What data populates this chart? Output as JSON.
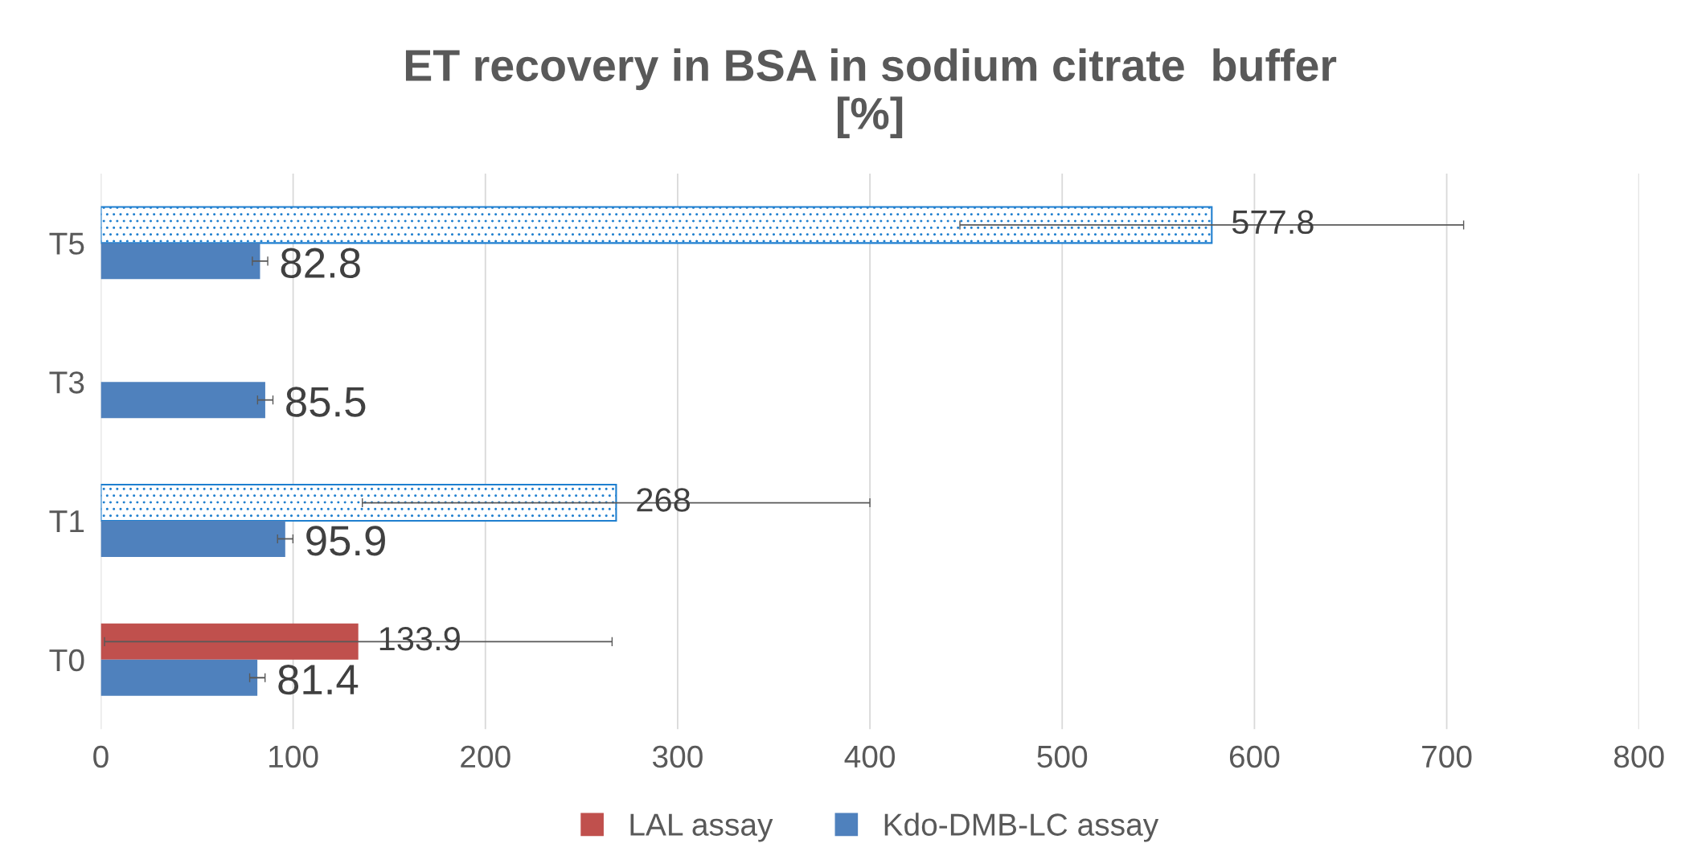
{
  "chart_data": {
    "type": "bar",
    "orientation": "horizontal",
    "title": "ET recovery in BSA in sodium citrate  buffer\n[%]",
    "categories": [
      "T5",
      "T3",
      "T1",
      "T0"
    ],
    "series": [
      {
        "name": "LAL assay",
        "color": "#c0504d",
        "colors": [
          "#1f7fcf",
          null,
          "#1f7fcf",
          "#c0504d"
        ],
        "values": [
          577.8,
          null,
          268,
          133.9
        ],
        "errors": [
          131,
          null,
          132,
          132
        ]
      },
      {
        "name": "Kdo-DMB-LC assay",
        "color": "#4f81bd",
        "values": [
          82.8,
          85.5,
          95.9,
          81.4
        ],
        "errors": [
          4,
          4,
          4,
          4
        ]
      }
    ],
    "xlim": [
      0,
      800
    ],
    "xticks": [
      0,
      100,
      200,
      300,
      400,
      500,
      600,
      700,
      800
    ],
    "grid": "x",
    "legend": "bottom",
    "data_labels": true
  }
}
